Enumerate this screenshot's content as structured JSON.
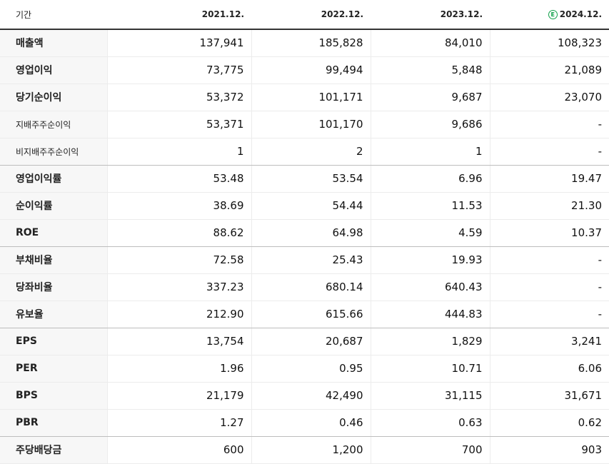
{
  "table": {
    "header": {
      "label": "기간",
      "periods": [
        "2021.12.",
        "2022.12.",
        "2023.12.",
        "2024.12."
      ],
      "estimate_marker": "E",
      "estimate_color": "#12a14b"
    },
    "rows": [
      {
        "label": "매출액",
        "values": [
          "137,941",
          "185,828",
          "84,010",
          "108,323"
        ],
        "sub": false,
        "group_end": false
      },
      {
        "label": "영업이익",
        "values": [
          "73,775",
          "99,494",
          "5,848",
          "21,089"
        ],
        "sub": false,
        "group_end": false
      },
      {
        "label": "당기순이익",
        "values": [
          "53,372",
          "101,171",
          "9,687",
          "23,070"
        ],
        "sub": false,
        "group_end": false
      },
      {
        "label": "지배주주순이익",
        "values": [
          "53,371",
          "101,170",
          "9,686",
          "-"
        ],
        "sub": true,
        "group_end": false
      },
      {
        "label": "비지배주주순이익",
        "values": [
          "1",
          "2",
          "1",
          "-"
        ],
        "sub": true,
        "group_end": true
      },
      {
        "label": "영업이익률",
        "values": [
          "53.48",
          "53.54",
          "6.96",
          "19.47"
        ],
        "sub": false,
        "group_end": false
      },
      {
        "label": "순이익률",
        "values": [
          "38.69",
          "54.44",
          "11.53",
          "21.30"
        ],
        "sub": false,
        "group_end": false
      },
      {
        "label": "ROE",
        "values": [
          "88.62",
          "64.98",
          "4.59",
          "10.37"
        ],
        "sub": false,
        "group_end": true
      },
      {
        "label": "부채비율",
        "values": [
          "72.58",
          "25.43",
          "19.93",
          "-"
        ],
        "sub": false,
        "group_end": false
      },
      {
        "label": "당좌비율",
        "values": [
          "337.23",
          "680.14",
          "640.43",
          "-"
        ],
        "sub": false,
        "group_end": false
      },
      {
        "label": "유보율",
        "values": [
          "212.90",
          "615.66",
          "444.83",
          "-"
        ],
        "sub": false,
        "group_end": true
      },
      {
        "label": "EPS",
        "values": [
          "13,754",
          "20,687",
          "1,829",
          "3,241"
        ],
        "sub": false,
        "group_end": false
      },
      {
        "label": "PER",
        "values": [
          "1.96",
          "0.95",
          "10.71",
          "6.06"
        ],
        "sub": false,
        "group_end": false
      },
      {
        "label": "BPS",
        "values": [
          "21,179",
          "42,490",
          "31,115",
          "31,671"
        ],
        "sub": false,
        "group_end": false
      },
      {
        "label": "PBR",
        "values": [
          "1.27",
          "0.46",
          "0.63",
          "0.62"
        ],
        "sub": false,
        "group_end": true
      },
      {
        "label": "주당배당금",
        "values": [
          "600",
          "1,200",
          "700",
          "903"
        ],
        "sub": false,
        "group_end": false
      }
    ]
  }
}
